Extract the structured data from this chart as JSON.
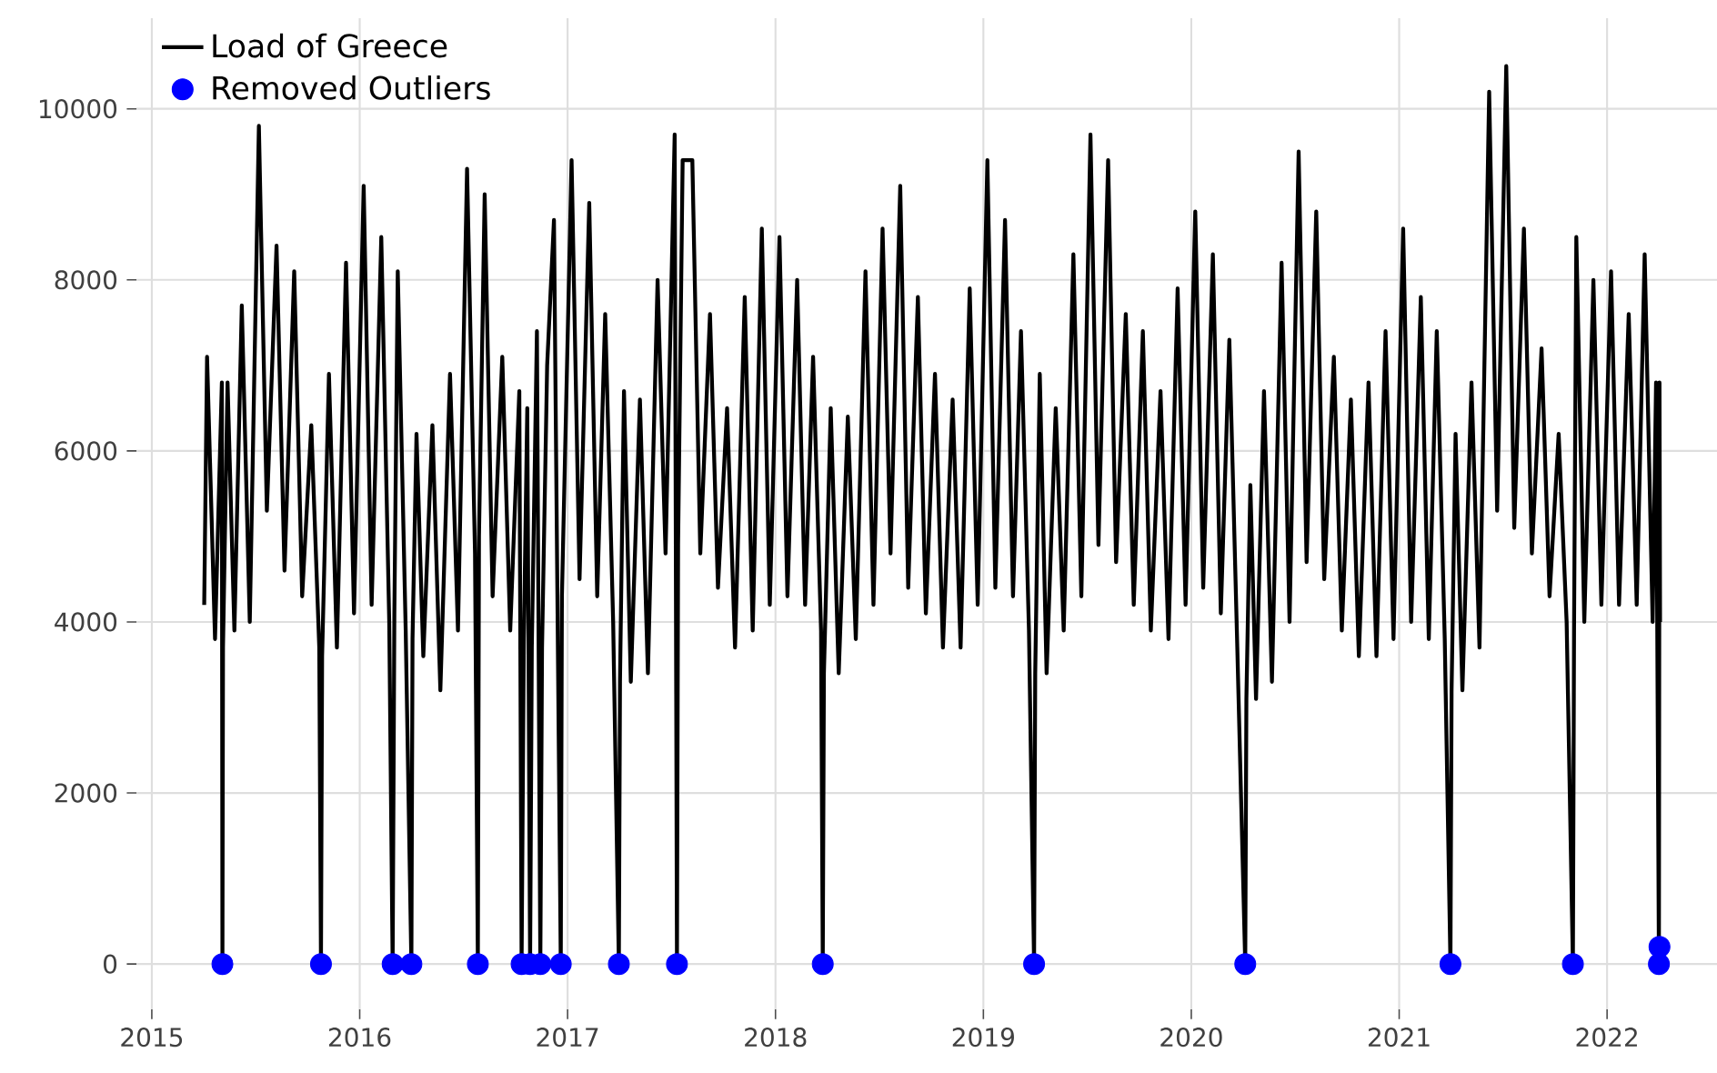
{
  "chart_data": {
    "type": "line",
    "series": [
      {
        "name": "Load of Greece",
        "color": "#000000",
        "x": [
          "2015-04-03",
          "2015-04-08",
          "2015-04-22",
          "2015-05-04",
          "2015-05-05",
          "2015-05-06",
          "2015-05-14",
          "2015-05-26",
          "2015-06-08",
          "2015-06-22",
          "2015-07-08",
          "2015-07-22",
          "2015-08-08",
          "2015-08-22",
          "2015-09-08",
          "2015-09-22",
          "2015-10-08",
          "2015-10-22",
          "2015-10-25",
          "2015-10-27",
          "2015-11-08",
          "2015-11-22",
          "2015-12-08",
          "2015-12-22",
          "2016-01-08",
          "2016-01-22",
          "2016-02-08",
          "2016-02-22",
          "2016-02-28",
          "2016-03-02",
          "2016-03-08",
          "2016-03-22",
          "2016-04-01",
          "2016-04-03",
          "2016-04-10",
          "2016-04-22",
          "2016-05-08",
          "2016-05-22",
          "2016-06-08",
          "2016-06-22",
          "2016-07-08",
          "2016-07-22",
          "2016-07-27",
          "2016-07-29",
          "2016-08-08",
          "2016-08-22",
          "2016-09-08",
          "2016-09-22",
          "2016-10-08",
          "2016-10-12",
          "2016-10-16",
          "2016-10-22",
          "2016-10-27",
          "2016-10-30",
          "2016-11-08",
          "2016-11-14",
          "2016-11-17",
          "2016-11-26",
          "2016-12-08",
          "2016-12-20",
          "2016-12-22",
          "2017-01-08",
          "2017-01-22",
          "2017-02-08",
          "2017-02-22",
          "2017-03-08",
          "2017-03-22",
          "2017-04-01",
          "2017-04-03",
          "2017-04-10",
          "2017-04-22",
          "2017-05-08",
          "2017-05-22",
          "2017-06-08",
          "2017-06-22",
          "2017-07-08",
          "2017-07-12",
          "2017-07-14",
          "2017-07-22",
          "2017-08-08",
          "2017-08-22",
          "2017-09-08",
          "2017-09-22",
          "2017-10-08",
          "2017-10-22",
          "2017-11-08",
          "2017-11-22",
          "2017-12-08",
          "2017-12-22",
          "2018-01-08",
          "2018-01-22",
          "2018-02-08",
          "2018-02-22",
          "2018-03-08",
          "2018-03-22",
          "2018-03-25",
          "2018-03-27",
          "2018-04-08",
          "2018-04-22",
          "2018-05-08",
          "2018-05-22",
          "2018-06-08",
          "2018-06-22",
          "2018-07-08",
          "2018-07-22",
          "2018-08-08",
          "2018-08-22",
          "2018-09-08",
          "2018-09-22",
          "2018-10-08",
          "2018-10-22",
          "2018-11-08",
          "2018-11-22",
          "2018-12-08",
          "2018-12-22",
          "2019-01-08",
          "2019-01-22",
          "2019-02-08",
          "2019-02-22",
          "2019-03-08",
          "2019-03-22",
          "2019-03-31",
          "2019-04-02",
          "2019-04-10",
          "2019-04-22",
          "2019-05-08",
          "2019-05-22",
          "2019-06-08",
          "2019-06-22",
          "2019-07-08",
          "2019-07-22",
          "2019-08-08",
          "2019-08-22",
          "2019-09-08",
          "2019-09-22",
          "2019-10-08",
          "2019-10-22",
          "2019-11-08",
          "2019-11-22",
          "2019-12-08",
          "2019-12-22",
          "2020-01-08",
          "2020-01-22",
          "2020-02-08",
          "2020-02-22",
          "2020-03-08",
          "2020-03-22",
          "2020-04-05",
          "2020-04-07",
          "2020-04-14",
          "2020-04-24",
          "2020-05-08",
          "2020-05-22",
          "2020-06-08",
          "2020-06-22",
          "2020-07-08",
          "2020-07-22",
          "2020-08-08",
          "2020-08-22",
          "2020-09-08",
          "2020-09-22",
          "2020-10-08",
          "2020-10-22",
          "2020-11-08",
          "2020-11-22",
          "2020-12-08",
          "2020-12-22",
          "2021-01-08",
          "2021-01-22",
          "2021-02-08",
          "2021-02-22",
          "2021-03-08",
          "2021-03-22",
          "2021-04-01",
          "2021-04-03",
          "2021-04-10",
          "2021-04-22",
          "2021-05-08",
          "2021-05-22",
          "2021-06-08",
          "2021-06-22",
          "2021-07-08",
          "2021-07-22",
          "2021-08-08",
          "2021-08-22",
          "2021-09-08",
          "2021-09-22",
          "2021-10-08",
          "2021-10-22",
          "2021-11-02",
          "2021-11-04",
          "2021-11-08",
          "2021-11-22",
          "2021-12-08",
          "2021-12-22",
          "2022-01-08",
          "2022-01-22",
          "2022-02-08",
          "2022-02-22",
          "2022-03-08",
          "2022-03-22",
          "2022-03-28",
          "2022-04-02",
          "2022-04-03",
          "2022-04-04"
        ],
        "values": [
          4200,
          7100,
          3800,
          6800,
          0,
          3700,
          6800,
          3900,
          7700,
          4000,
          9800,
          5300,
          8400,
          4600,
          8100,
          4300,
          6300,
          3700,
          0,
          3600,
          6900,
          3700,
          8200,
          4100,
          9100,
          4200,
          8500,
          4000,
          0,
          4100,
          8100,
          3900,
          0,
          3800,
          6200,
          3600,
          6300,
          3200,
          6900,
          3900,
          9300,
          4800,
          0,
          5000,
          9000,
          4300,
          7100,
          3900,
          6700,
          0,
          3800,
          6500,
          0,
          3700,
          7400,
          0,
          3700,
          7000,
          8700,
          0,
          4300,
          9400,
          4500,
          8900,
          4300,
          7600,
          4000,
          0,
          3300,
          6700,
          3300,
          6600,
          3400,
          8000,
          4800,
          9700,
          0,
          4900,
          9400,
          9400,
          4800,
          7600,
          4400,
          6500,
          3700,
          7800,
          3900,
          8600,
          4200,
          8500,
          4300,
          8000,
          4200,
          7100,
          3900,
          0,
          3400,
          6500,
          3400,
          6400,
          3800,
          8100,
          4200,
          8600,
          4800,
          9100,
          4400,
          7800,
          4100,
          6900,
          3700,
          6600,
          3700,
          7900,
          4200,
          9400,
          4400,
          8700,
          4300,
          7400,
          3900,
          0,
          3400,
          6900,
          3400,
          6500,
          3900,
          8300,
          4300,
          9700,
          4900,
          9400,
          4700,
          7600,
          4200,
          7400,
          3900,
          6700,
          3800,
          7900,
          4200,
          8800,
          4400,
          8300,
          4100,
          7300,
          3700,
          0,
          3100,
          5600,
          3100,
          6700,
          3300,
          8200,
          4000,
          9500,
          4700,
          8800,
          4500,
          7100,
          3900,
          6600,
          3600,
          6800,
          3600,
          7400,
          3800,
          8600,
          4000,
          7800,
          3800,
          7400,
          3800,
          0,
          3200,
          6200,
          3200,
          6800,
          3700,
          10200,
          5300,
          10500,
          5100,
          8600,
          4800,
          7200,
          4300,
          6200,
          4000,
          0,
          3900,
          8500,
          4000,
          8000,
          4200,
          8100,
          4200,
          7600,
          4200,
          8300,
          4000,
          6800,
          0,
          6800,
          4000
        ]
      },
      {
        "name": "Removed Outliers",
        "type": "scatter",
        "color": "#0000ff",
        "marker": "circle",
        "x": [
          "2015-05-05",
          "2015-10-25",
          "2016-02-28",
          "2016-04-01",
          "2016-07-27",
          "2016-10-12",
          "2016-10-27",
          "2016-11-14",
          "2016-12-20",
          "2017-04-01",
          "2017-07-12",
          "2018-03-25",
          "2019-03-31",
          "2020-04-05",
          "2021-04-01",
          "2021-11-02",
          "2022-04-02",
          "2022-04-03"
        ],
        "values": [
          0,
          0,
          0,
          0,
          0,
          0,
          0,
          0,
          0,
          0,
          0,
          0,
          0,
          0,
          0,
          0,
          0,
          200
        ]
      }
    ],
    "xlim": [
      "2014-12-05",
      "2022-07-13"
    ],
    "xticks": [
      {
        "value": "2015",
        "label": "2015"
      },
      {
        "value": "2016",
        "label": "2016"
      },
      {
        "value": "2017",
        "label": "2017"
      },
      {
        "value": "2018",
        "label": "2018"
      },
      {
        "value": "2019",
        "label": "2019"
      },
      {
        "value": "2020",
        "label": "2020"
      },
      {
        "value": "2021",
        "label": "2021"
      },
      {
        "value": "2022",
        "label": "2022"
      }
    ],
    "ylim": [
      -530,
      11060
    ],
    "yticks": [
      0,
      2000,
      4000,
      6000,
      8000,
      10000
    ],
    "grid": true,
    "legend": "top left"
  }
}
